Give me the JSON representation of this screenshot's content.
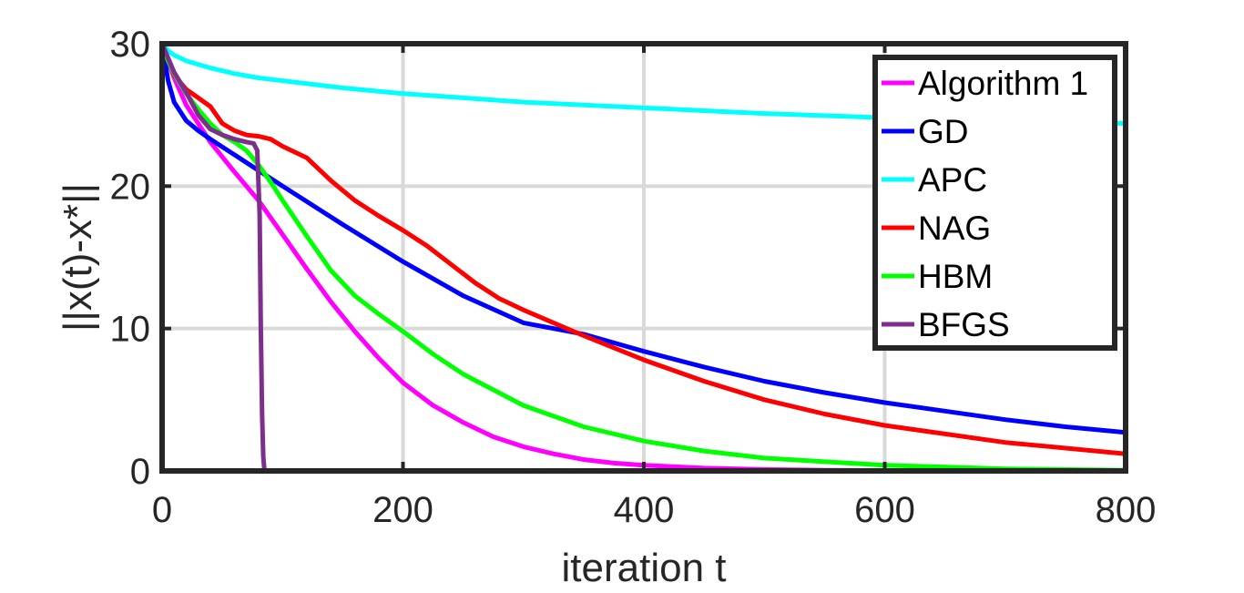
{
  "chart_data": {
    "type": "line",
    "title": "",
    "xlabel": "iteration t",
    "ylabel": "||x(t)-x*||",
    "xlim": [
      0,
      800
    ],
    "ylim": [
      0,
      30
    ],
    "xticks": [
      0,
      200,
      400,
      600,
      800
    ],
    "yticks": [
      0,
      10,
      20,
      30
    ],
    "xtick_labels": [
      "0",
      "200",
      "400",
      "600",
      "800"
    ],
    "ytick_labels": [
      "0",
      "10",
      "20",
      "30"
    ],
    "grid": true,
    "legend_position": "top-right",
    "series": [
      {
        "name": "Algorithm 1",
        "color": "#ff00ff",
        "x": [
          0,
          5,
          10,
          20,
          40,
          60,
          80,
          100,
          120,
          140,
          160,
          180,
          200,
          225,
          250,
          275,
          300,
          325,
          350,
          375,
          400,
          450,
          500,
          550,
          600,
          700,
          800
        ],
        "y": [
          30,
          28.8,
          27.6,
          25.7,
          23.1,
          21.0,
          19.0,
          16.6,
          14.2,
          11.9,
          9.8,
          7.9,
          6.2,
          4.6,
          3.4,
          2.4,
          1.7,
          1.2,
          0.8,
          0.55,
          0.4,
          0.2,
          0.1,
          0.05,
          0.03,
          0.01,
          0.0
        ]
      },
      {
        "name": "GD",
        "color": "#0000ff",
        "x": [
          0,
          5,
          10,
          20,
          30,
          40,
          60,
          80,
          100,
          150,
          200,
          250,
          300,
          350,
          400,
          450,
          500,
          550,
          600,
          650,
          700,
          750,
          800
        ],
        "y": [
          30,
          27.4,
          25.9,
          24.6,
          23.9,
          23.3,
          22.2,
          21.1,
          20.0,
          17.3,
          14.7,
          12.3,
          10.4,
          9.6,
          8.4,
          7.3,
          6.3,
          5.5,
          4.8,
          4.2,
          3.6,
          3.1,
          2.7
        ]
      },
      {
        "name": "APC",
        "color": "#00ffff",
        "x": [
          0,
          5,
          10,
          20,
          40,
          60,
          80,
          100,
          150,
          200,
          250,
          300,
          400,
          500,
          600,
          700,
          800
        ],
        "y": [
          30,
          29.5,
          29.2,
          28.8,
          28.3,
          27.9,
          27.6,
          27.4,
          26.9,
          26.5,
          26.2,
          25.9,
          25.5,
          25.1,
          24.8,
          24.6,
          24.4
        ]
      },
      {
        "name": "NAG",
        "color": "#ff0000",
        "x": [
          0,
          10,
          20,
          30,
          40,
          50,
          60,
          70,
          80,
          90,
          100,
          120,
          140,
          160,
          180,
          200,
          220,
          240,
          260,
          280,
          300,
          350,
          400,
          450,
          500,
          550,
          600,
          700,
          800
        ],
        "y": [
          30,
          27.8,
          26.8,
          26.2,
          25.6,
          24.4,
          23.9,
          23.6,
          23.5,
          23.3,
          22.8,
          22.0,
          20.4,
          19.0,
          17.9,
          16.9,
          15.8,
          14.5,
          13.2,
          12.1,
          11.3,
          9.5,
          7.8,
          6.3,
          5.0,
          4.0,
          3.2,
          2.0,
          1.2
        ]
      },
      {
        "name": "HBM",
        "color": "#00ff00",
        "x": [
          0,
          0.01,
          5,
          10,
          20,
          30,
          40,
          50,
          60,
          70,
          80,
          90,
          100,
          120,
          140,
          160,
          180,
          200,
          225,
          250,
          300,
          350,
          400,
          450,
          500,
          600,
          700,
          800
        ],
        "y": [
          0,
          30,
          28.8,
          27.9,
          26.5,
          25.4,
          24.4,
          23.6,
          23.1,
          22.5,
          21.5,
          20.3,
          19.0,
          16.5,
          14.1,
          12.3,
          11.0,
          9.8,
          8.2,
          6.8,
          4.6,
          3.1,
          2.1,
          1.4,
          0.9,
          0.4,
          0.15,
          0.05
        ]
      },
      {
        "name": "BFGS",
        "color": "#7e2f8e",
        "x": [
          0,
          10,
          20,
          30,
          40,
          50,
          60,
          70,
          76,
          79,
          81,
          82,
          83,
          84,
          85
        ],
        "y": [
          30,
          28.0,
          26.6,
          25.0,
          24.0,
          23.6,
          23.3,
          23.1,
          23.0,
          22.5,
          18.0,
          10.0,
          4.0,
          1.0,
          0.0
        ]
      }
    ]
  }
}
